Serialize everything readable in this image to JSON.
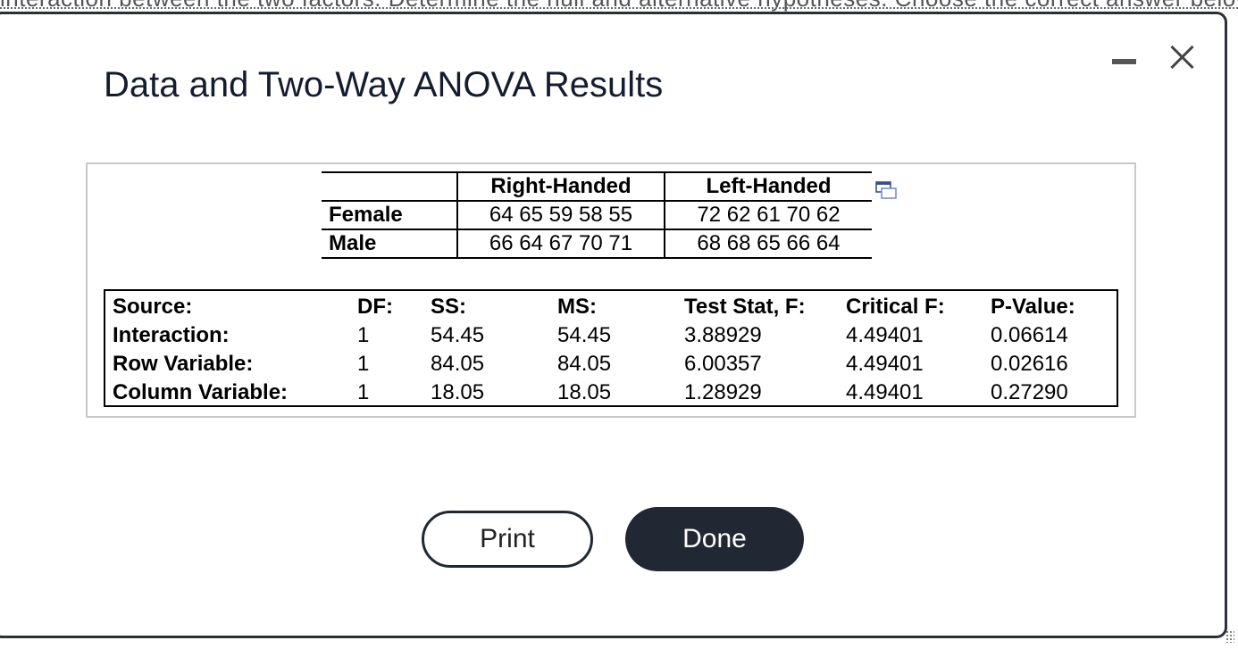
{
  "background": {
    "partial_text": "interaction between the two factors. Determine the null and alternative hypotheses. Choose the correct answer below."
  },
  "dialog": {
    "title": "Data and Two-Way ANOVA Results",
    "minimize_icon": "minimize-icon",
    "close_icon": "close-icon"
  },
  "data_table": {
    "headers": [
      "",
      "Right-Handed",
      "Left-Handed"
    ],
    "rows": [
      {
        "label": "Female",
        "right": "64 65 59 58 55",
        "left": "72 62 61 70 62"
      },
      {
        "label": "Male",
        "right": "66 64 67 70 71",
        "left": "68 68 65 66 64"
      }
    ],
    "popout_icon": "popout-window-icon"
  },
  "anova": {
    "headers": [
      "Source:",
      "DF:",
      "SS:",
      "MS:",
      "Test Stat, F:",
      "Critical F:",
      "P-Value:"
    ],
    "rows": [
      [
        "Interaction:",
        "1",
        "54.45",
        "54.45",
        "3.88929",
        "4.49401",
        "0.06614"
      ],
      [
        "Row Variable:",
        "1",
        "84.05",
        "84.05",
        "6.00357",
        "4.49401",
        "0.02616"
      ],
      [
        "Column Variable:",
        "1",
        "18.05",
        "18.05",
        "1.28929",
        "4.49401",
        "0.27290"
      ]
    ]
  },
  "buttons": {
    "print": "Print",
    "done": "Done"
  },
  "colors": {
    "dark": "#222833",
    "title": "#141c2e",
    "box_border": "#c8c8c8"
  }
}
